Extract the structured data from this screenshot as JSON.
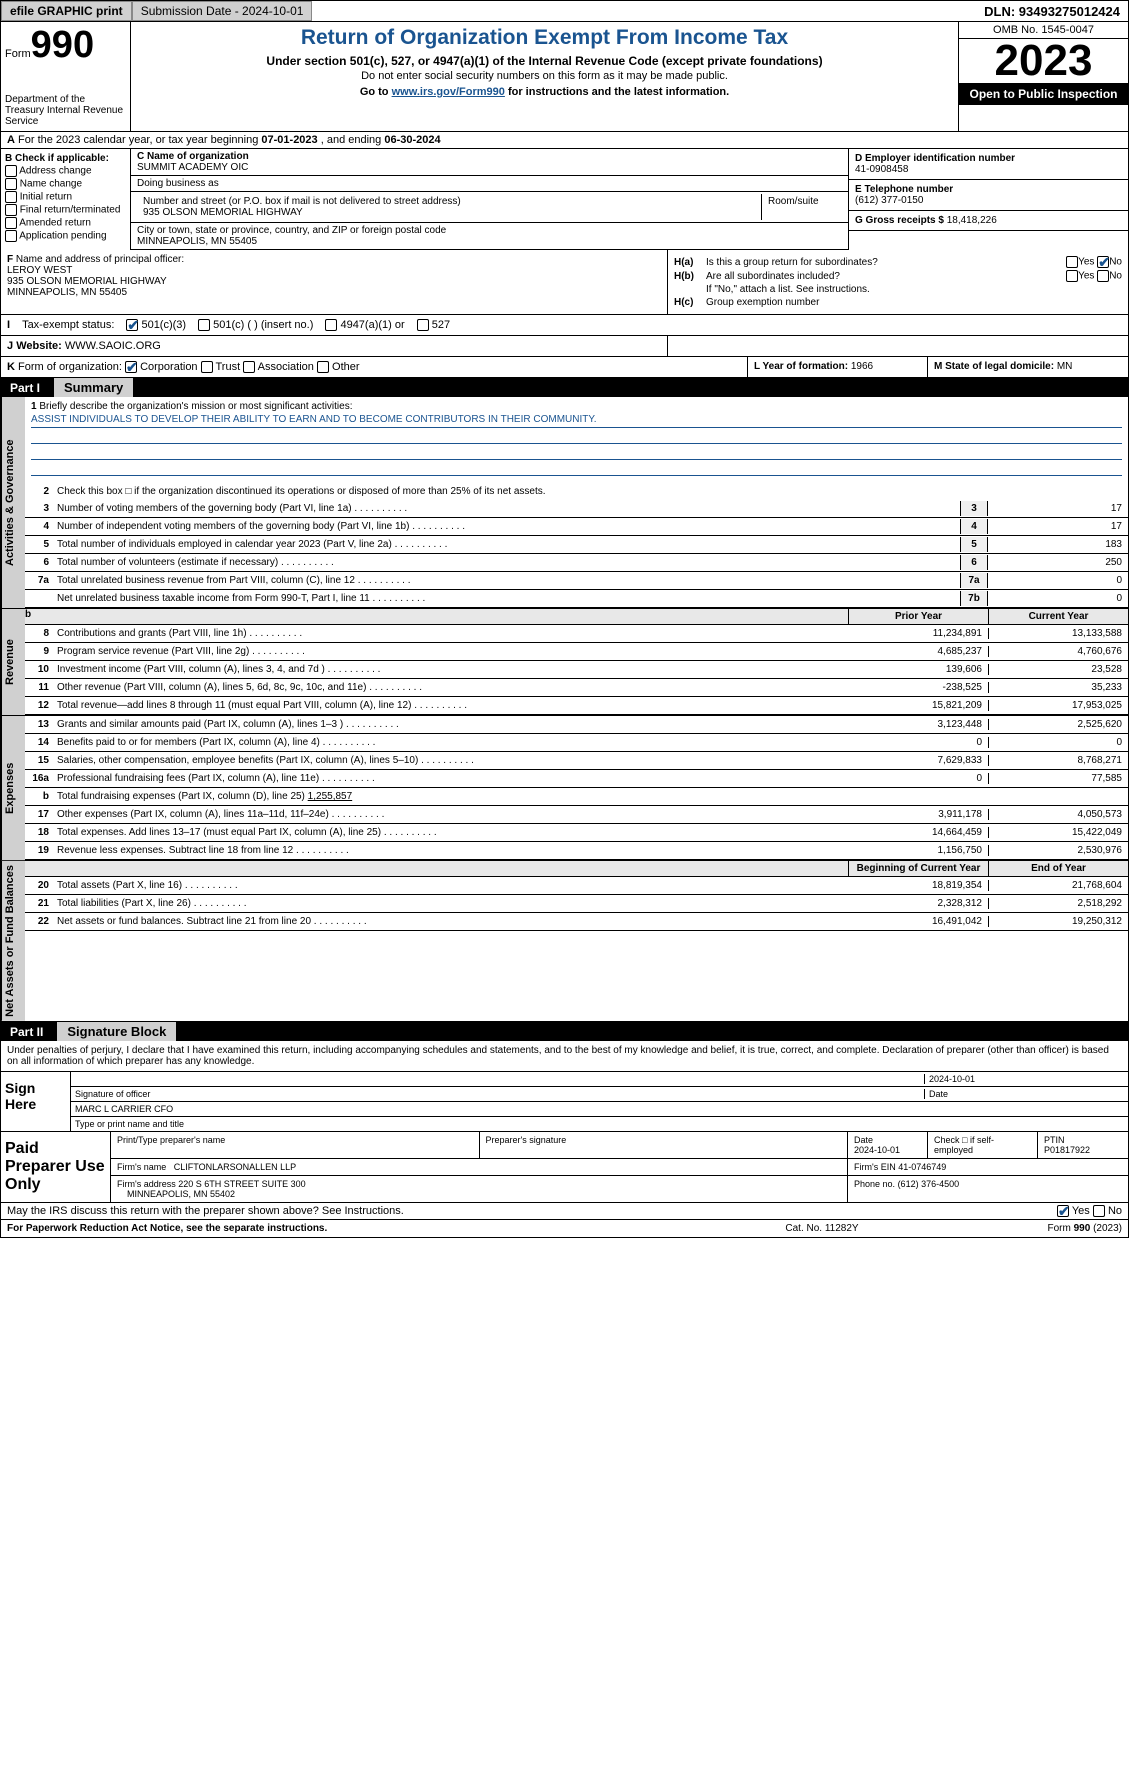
{
  "topbar": {
    "efile": "efile GRAPHIC print",
    "submission": "Submission Date - 2024-10-01",
    "dln": "DLN: 93493275012424"
  },
  "header": {
    "form_label": "Form",
    "form_num": "990",
    "dept": "Department of the Treasury\nInternal Revenue Service",
    "title": "Return of Organization Exempt From Income Tax",
    "sub1": "Under section 501(c), 527, or 4947(a)(1) of the Internal Revenue Code (except private foundations)",
    "sub2": "Do not enter social security numbers on this form as it may be made public.",
    "sub3_pre": "Go to ",
    "sub3_link": "www.irs.gov/Form990",
    "sub3_post": " for instructions and the latest information.",
    "omb": "OMB No. 1545-0047",
    "year": "2023",
    "inspect": "Open to Public Inspection"
  },
  "row_a": {
    "label": "A",
    "text_pre": "For the 2023 calendar year, or tax year beginning ",
    "begin": "07-01-2023",
    "mid": " , and ending ",
    "end": "06-30-2024"
  },
  "col_b": {
    "label": "B Check if applicable:",
    "opts": [
      "Address change",
      "Name change",
      "Initial return",
      "Final return/terminated",
      "Amended return",
      "Application pending"
    ]
  },
  "col_c": {
    "name_label": "C Name of organization",
    "name": "SUMMIT ACADEMY OIC",
    "dba_label": "Doing business as",
    "addr_label": "Number and street (or P.O. box if mail is not delivered to street address)",
    "addr": "935 OLSON MEMORIAL HIGHWAY",
    "room_label": "Room/suite",
    "city_label": "City or town, state or province, country, and ZIP or foreign postal code",
    "city": "MINNEAPOLIS, MN  55405"
  },
  "col_d": {
    "ein_label": "D Employer identification number",
    "ein": "41-0908458",
    "phone_label": "E Telephone number",
    "phone": "(612) 377-0150",
    "gross_label": "G Gross receipts $ ",
    "gross": "18,418,226"
  },
  "row_f": {
    "label": "F",
    "text": "Name and address of principal officer:",
    "name": "LEROY WEST",
    "addr1": "935 OLSON MEMORIAL HIGHWAY",
    "addr2": "MINNEAPOLIS, MN  55405"
  },
  "row_h": {
    "ha_lbl": "H(a)",
    "ha_txt": "Is this a group return for subordinates?",
    "hb_lbl": "H(b)",
    "hb_txt": "Are all subordinates included?",
    "hb_note": "If \"No,\" attach a list. See instructions.",
    "hc_lbl": "H(c)",
    "hc_txt": "Group exemption number",
    "yes": "Yes",
    "no": "No"
  },
  "row_i": {
    "label": "I",
    "text": "Tax-exempt status:",
    "o1": "501(c)(3)",
    "o2": "501(c) (  ) (insert no.)",
    "o3": "4947(a)(1) or",
    "o4": "527"
  },
  "row_j": {
    "label": "J",
    "text": "Website:",
    "val": "WWW.SAOIC.ORG"
  },
  "row_k": {
    "label": "K",
    "text": "Form of organization:",
    "o1": "Corporation",
    "o2": "Trust",
    "o3": "Association",
    "o4": "Other",
    "l_label": "L Year of formation: ",
    "l_val": "1966",
    "m_label": "M State of legal domicile: ",
    "m_val": "MN"
  },
  "part1": {
    "num": "Part I",
    "title": "Summary"
  },
  "tabs": {
    "gov": "Activities & Governance",
    "rev": "Revenue",
    "exp": "Expenses",
    "net": "Net Assets or Fund Balances"
  },
  "mission": {
    "n": "1",
    "label": "Briefly describe the organization's mission or most significant activities:",
    "text": "ASSIST INDIVIDUALS TO DEVELOP THEIR ABILITY TO EARN AND TO BECOME CONTRIBUTORS IN THEIR COMMUNITY."
  },
  "line2": {
    "n": "2",
    "t": "Check this box □ if the organization discontinued its operations or disposed of more than 25% of its net assets."
  },
  "lines_gov": [
    {
      "n": "3",
      "t": "Number of voting members of the governing body (Part VI, line 1a)",
      "box": "3",
      "v": "17"
    },
    {
      "n": "4",
      "t": "Number of independent voting members of the governing body (Part VI, line 1b)",
      "box": "4",
      "v": "17"
    },
    {
      "n": "5",
      "t": "Total number of individuals employed in calendar year 2023 (Part V, line 2a)",
      "box": "5",
      "v": "183"
    },
    {
      "n": "6",
      "t": "Total number of volunteers (estimate if necessary)",
      "box": "6",
      "v": "250"
    },
    {
      "n": "7a",
      "t": "Total unrelated business revenue from Part VIII, column (C), line 12",
      "box": "7a",
      "v": "0"
    },
    {
      "n": "",
      "t": "Net unrelated business taxable income from Form 990-T, Part I, line 11",
      "box": "7b",
      "v": "0"
    }
  ],
  "hdr_rev": {
    "b": "b",
    "prior": "Prior Year",
    "current": "Current Year"
  },
  "lines_rev": [
    {
      "n": "8",
      "t": "Contributions and grants (Part VIII, line 1h)",
      "p": "11,234,891",
      "c": "13,133,588"
    },
    {
      "n": "9",
      "t": "Program service revenue (Part VIII, line 2g)",
      "p": "4,685,237",
      "c": "4,760,676"
    },
    {
      "n": "10",
      "t": "Investment income (Part VIII, column (A), lines 3, 4, and 7d )",
      "p": "139,606",
      "c": "23,528"
    },
    {
      "n": "11",
      "t": "Other revenue (Part VIII, column (A), lines 5, 6d, 8c, 9c, 10c, and 11e)",
      "p": "-238,525",
      "c": "35,233"
    },
    {
      "n": "12",
      "t": "Total revenue—add lines 8 through 11 (must equal Part VIII, column (A), line 12)",
      "p": "15,821,209",
      "c": "17,953,025"
    }
  ],
  "lines_exp": [
    {
      "n": "13",
      "t": "Grants and similar amounts paid (Part IX, column (A), lines 1–3 )",
      "p": "3,123,448",
      "c": "2,525,620"
    },
    {
      "n": "14",
      "t": "Benefits paid to or for members (Part IX, column (A), line 4)",
      "p": "0",
      "c": "0"
    },
    {
      "n": "15",
      "t": "Salaries, other compensation, employee benefits (Part IX, column (A), lines 5–10)",
      "p": "7,629,833",
      "c": "8,768,271"
    },
    {
      "n": "16a",
      "t": "Professional fundraising fees (Part IX, column (A), line 11e)",
      "p": "0",
      "c": "77,585"
    }
  ],
  "line16b": {
    "n": "b",
    "t": "Total fundraising expenses (Part IX, column (D), line 25) ",
    "v": "1,255,857"
  },
  "lines_exp2": [
    {
      "n": "17",
      "t": "Other expenses (Part IX, column (A), lines 11a–11d, 11f–24e)",
      "p": "3,911,178",
      "c": "4,050,573"
    },
    {
      "n": "18",
      "t": "Total expenses. Add lines 13–17 (must equal Part IX, column (A), line 25)",
      "p": "14,664,459",
      "c": "15,422,049"
    },
    {
      "n": "19",
      "t": "Revenue less expenses. Subtract line 18 from line 12",
      "p": "1,156,750",
      "c": "2,530,976"
    }
  ],
  "hdr_net": {
    "begin": "Beginning of Current Year",
    "end": "End of Year"
  },
  "lines_net": [
    {
      "n": "20",
      "t": "Total assets (Part X, line 16)",
      "p": "18,819,354",
      "c": "21,768,604"
    },
    {
      "n": "21",
      "t": "Total liabilities (Part X, line 26)",
      "p": "2,328,312",
      "c": "2,518,292"
    },
    {
      "n": "22",
      "t": "Net assets or fund balances. Subtract line 21 from line 20",
      "p": "16,491,042",
      "c": "19,250,312"
    }
  ],
  "part2": {
    "num": "Part II",
    "title": "Signature Block"
  },
  "sig_decl": "Under penalties of perjury, I declare that I have examined this return, including accompanying schedules and statements, and to the best of my knowledge and belief, it is true, correct, and complete. Declaration of preparer (other than officer) is based on all information of which preparer has any knowledge.",
  "sign": {
    "label": "Sign Here",
    "date": "2024-10-01",
    "sig_lbl": "Signature of officer",
    "name": "MARC L CARRIER CFO",
    "name_lbl": "Type or print name and title",
    "date_lbl": "Date"
  },
  "prep": {
    "label": "Paid Preparer Use Only",
    "c1": "Print/Type preparer's name",
    "c2": "Preparer's signature",
    "c3": "Date",
    "c3v": "2024-10-01",
    "c4": "Check □ if self-employed",
    "c5": "PTIN",
    "c5v": "P01817922",
    "firm_lbl": "Firm's name",
    "firm": "CLIFTONLARSONALLEN LLP",
    "ein_lbl": "Firm's EIN",
    "ein": "41-0746749",
    "addr_lbl": "Firm's address",
    "addr": "220 S 6TH STREET SUITE 300",
    "addr2": "MINNEAPOLIS, MN  55402",
    "phone_lbl": "Phone no.",
    "phone": "(612) 376-4500"
  },
  "discuss": {
    "t": "May the IRS discuss this return with the preparer shown above? See Instructions.",
    "yes": "Yes",
    "no": "No"
  },
  "footer": {
    "l": "For Paperwork Reduction Act Notice, see the separate instructions.",
    "m": "Cat. No. 11282Y",
    "r_pre": "Form ",
    "r_b": "990",
    "r_post": " (2023)"
  }
}
